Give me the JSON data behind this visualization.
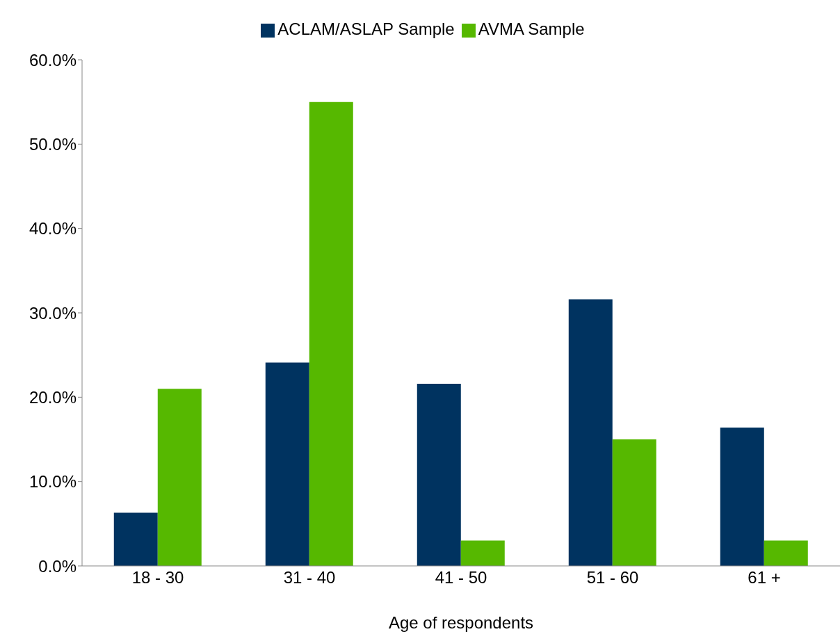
{
  "chart_data": {
    "type": "bar",
    "xlabel": "Age of respondents",
    "categories": [
      "18 - 30",
      "31 - 40",
      "41 - 50",
      "51 - 60",
      "61 +"
    ],
    "series": [
      {
        "name": "ACLAM/ASLAP Sample",
        "color": "#003360",
        "values": [
          6.3,
          24.1,
          21.6,
          31.6,
          16.4
        ]
      },
      {
        "name": "AVMA Sample",
        "color": "#56b800",
        "values": [
          21.0,
          55.0,
          3.0,
          15.0,
          3.0
        ]
      }
    ],
    "ylim": [
      0,
      60
    ],
    "yticks": [
      {
        "value": 0,
        "label": "0.0%"
      },
      {
        "value": 10,
        "label": "10.0%"
      },
      {
        "value": 20,
        "label": "20.0%"
      },
      {
        "value": 30,
        "label": "30.0%"
      },
      {
        "value": 40,
        "label": "40.0%"
      },
      {
        "value": 50,
        "label": "50.0%"
      },
      {
        "value": 60,
        "label": "60.0%"
      }
    ],
    "grid": false,
    "legend": "top"
  }
}
